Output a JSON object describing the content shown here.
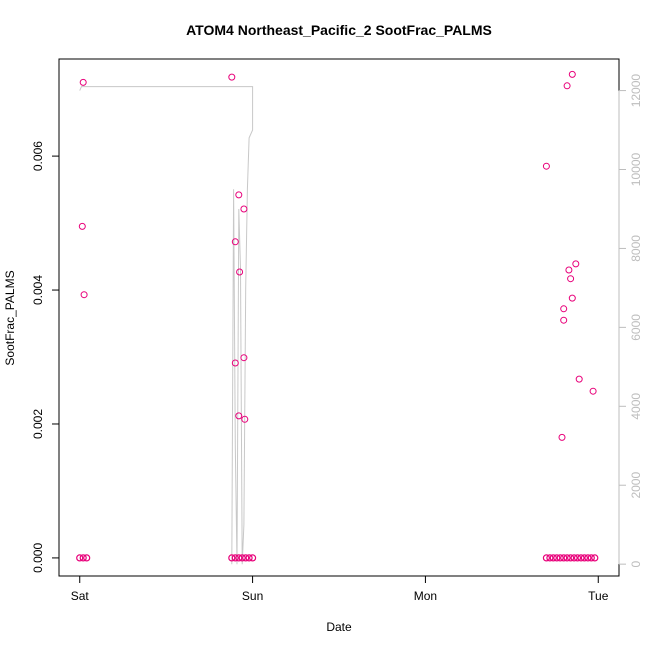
{
  "chart_data": {
    "type": "scatter",
    "title": "ATOM4 Northeast_Pacific_2 SootFrac_PALMS",
    "xlabel": "Date",
    "ylabel": "SootFrac_PALMS",
    "x_ticks": [
      "Sat",
      "Sun",
      "Mon",
      "Tue"
    ],
    "x_tick_values": [
      0,
      1,
      2,
      3
    ],
    "xlim": [
      -0.12,
      3.12
    ],
    "ylim": [
      -0.00027,
      0.00745
    ],
    "y_ticks": [
      0.0,
      0.002,
      0.004,
      0.006
    ],
    "y_tick_labels": [
      "0.000",
      "0.002",
      "0.004",
      "0.006"
    ],
    "y2lim": [
      -300,
      12800
    ],
    "y2_ticks": [
      0,
      2000,
      4000,
      6000,
      8000,
      10000,
      12000
    ],
    "y2_tick_labels": [
      "0",
      "2000",
      "4000",
      "6000",
      "8000",
      "10000",
      "12000"
    ],
    "grid": false,
    "colors": {
      "points": "#e8007a",
      "altitude_line": "#c8c8c8",
      "secondary_axis": "#bdbdbd"
    },
    "series": [
      {
        "values": [
          {
            "x": 0.02,
            "y": 0.0071
          },
          {
            "x": 0.015,
            "y": 0.00495
          },
          {
            "x": 0.025,
            "y": 0.00393
          },
          {
            "x": 0.88,
            "y": 0.00718
          },
          {
            "x": 0.9,
            "y": 0.00472
          },
          {
            "x": 0.9,
            "y": 0.00291
          },
          {
            "x": 0.92,
            "y": 0.00542
          },
          {
            "x": 0.925,
            "y": 0.00427
          },
          {
            "x": 0.92,
            "y": 0.00212
          },
          {
            "x": 0.95,
            "y": 0.00521
          },
          {
            "x": 0.95,
            "y": 0.00299
          },
          {
            "x": 0.955,
            "y": 0.00207
          },
          {
            "x": 2.7,
            "y": 0.00585
          },
          {
            "x": 2.79,
            "y": 0.0018
          },
          {
            "x": 2.8,
            "y": 0.00372
          },
          {
            "x": 2.8,
            "y": 0.00355
          },
          {
            "x": 2.82,
            "y": 0.00705
          },
          {
            "x": 2.83,
            "y": 0.0043
          },
          {
            "x": 2.84,
            "y": 0.00417
          },
          {
            "x": 2.85,
            "y": 0.00722
          },
          {
            "x": 2.85,
            "y": 0.00388
          },
          {
            "x": 2.87,
            "y": 0.00439
          },
          {
            "x": 2.89,
            "y": 0.00267
          },
          {
            "x": 2.97,
            "y": 0.00249
          }
        ],
        "zero_segments": [
          [
            0.0,
            0.04
          ],
          [
            0.88,
            1.0
          ],
          [
            2.7,
            2.98
          ]
        ]
      },
      {
        "axis": "secondary",
        "line_points": [
          [
            0.0,
            12000
          ],
          [
            0.01,
            12100
          ],
          [
            1.0,
            12100
          ],
          [
            1.0,
            11000
          ],
          [
            0.98,
            10800
          ],
          [
            0.97,
            9500
          ],
          [
            0.96,
            7000
          ],
          [
            0.95,
            1000
          ],
          [
            0.94,
            0
          ],
          [
            0.93,
            7500
          ],
          [
            0.92,
            9000
          ],
          [
            0.91,
            0
          ],
          [
            0.9,
            3000
          ],
          [
            0.89,
            9500
          ],
          [
            0.88,
            0
          ]
        ]
      }
    ]
  }
}
